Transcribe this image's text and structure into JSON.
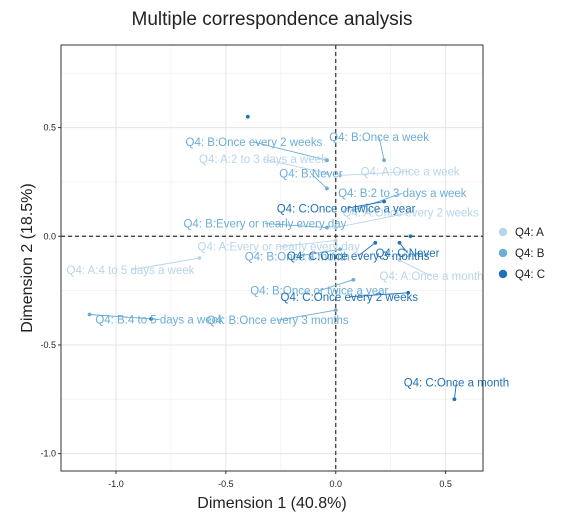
{
  "chart_data": {
    "type": "scatter",
    "title": "Multiple correspondence analysis",
    "xlabel": "Dimension 1 (40.8%)",
    "ylabel": "Dimension 2 (18.5%)",
    "xlim": [
      -1.25,
      0.67
    ],
    "ylim": [
      -1.08,
      0.88
    ],
    "x_ticks": [
      -1.0,
      -0.5,
      0.0,
      0.5
    ],
    "x_tick_labels": [
      "-1.0",
      "-0.5",
      "0.0",
      "0.5"
    ],
    "y_ticks": [
      -1.0,
      -0.5,
      0.0,
      0.5
    ],
    "y_tick_labels": [
      "-1.0",
      "-0.5",
      "0.0",
      "0.5"
    ],
    "grid": true,
    "reference_lines": [
      "x=0 dashed",
      "y=0 dashed"
    ],
    "legend_position": "right",
    "series": [
      {
        "name": "Q4: A",
        "color": "#b8d5ea",
        "points": [
          {
            "label": "Q4: A:2 to 3 days a week",
            "x": -0.04,
            "y": 0.29
          },
          {
            "label": "Q4: A:Once a week",
            "x": 0.02,
            "y": 0.28
          },
          {
            "label": "Q4: A:Once every 2 weeks",
            "x": 0.0,
            "y": 0.04
          },
          {
            "label": "Q4: A:Every or nearly every day",
            "x": 0.0,
            "y": -0.02
          },
          {
            "label": "Q4: A:Once a month",
            "x": 0.29,
            "y": -0.11
          },
          {
            "label": "Q4: A:4 to 5 days a week",
            "x": -0.62,
            "y": -0.1
          }
        ]
      },
      {
        "name": "Q4: B",
        "color": "#6baed6",
        "points": [
          {
            "label": "Q4: B:Once every 2 weeks",
            "x": -0.04,
            "y": 0.35
          },
          {
            "label": "Q4: B:Once a week",
            "x": 0.22,
            "y": 0.35
          },
          {
            "label": "Q4: B:Never",
            "x": -0.04,
            "y": 0.22
          },
          {
            "label": "Q4: B:2 to 3 days a week",
            "x": 0.08,
            "y": 0.12
          },
          {
            "label": "Q4: B:Every or nearly every day",
            "x": -0.04,
            "y": 0.04
          },
          {
            "label": "Q4: B:Once a month",
            "x": 0.02,
            "y": -0.06
          },
          {
            "label": "Q4: B:Once or twice a year",
            "x": 0.08,
            "y": -0.2
          },
          {
            "label": "Q4: B:Once every 3 months",
            "x": 0.0,
            "y": -0.34
          },
          {
            "label": "Q4: B:4 to 5 days a week",
            "x": -1.12,
            "y": -0.36
          }
        ]
      },
      {
        "name": "Q4: C",
        "color": "#2171b5",
        "points": [
          {
            "label": "Q4: C:Once or twice a year",
            "x": 0.22,
            "y": 0.16
          },
          {
            "label": "Q4: C:Never",
            "x": 0.29,
            "y": -0.03
          },
          {
            "label": "Q4: C:Once every 3 months",
            "x": 0.18,
            "y": -0.03
          },
          {
            "label": "Q4: C:Once every 2 weeks",
            "x": 0.33,
            "y": -0.26
          },
          {
            "label": "Q4: C:Once a month",
            "x": 0.54,
            "y": -0.75
          },
          {
            "label": "",
            "x": -0.4,
            "y": 0.55
          },
          {
            "label": "",
            "x": -0.84,
            "y": -0.38
          },
          {
            "label": "",
            "x": 0.34,
            "y": 0.0
          }
        ]
      }
    ]
  }
}
